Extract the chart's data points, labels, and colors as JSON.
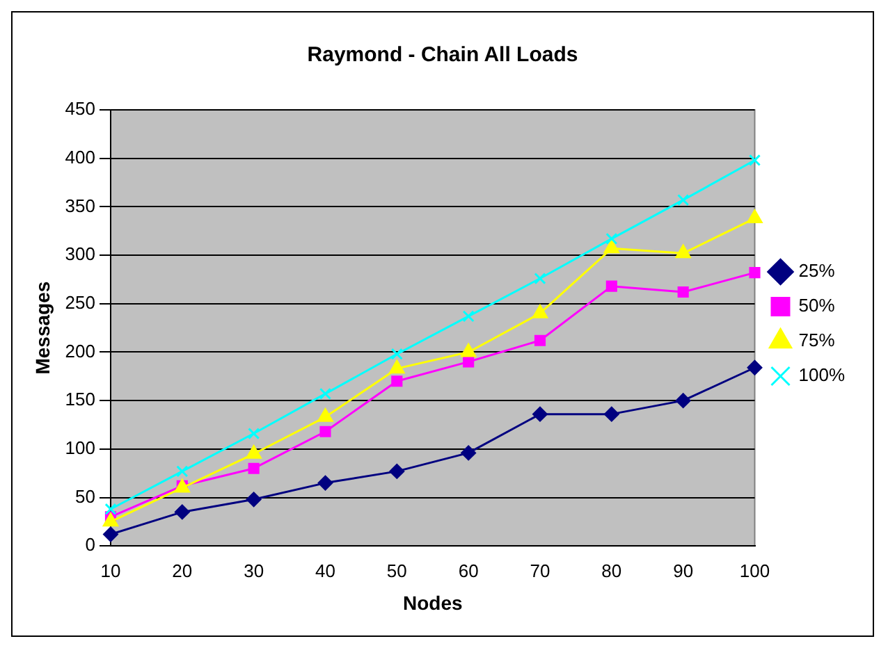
{
  "chart_data": {
    "type": "line",
    "title": "Raymond - Chain All Loads",
    "xlabel": "Nodes",
    "ylabel": "Messages",
    "categories": [
      "10",
      "20",
      "30",
      "40",
      "50",
      "60",
      "70",
      "80",
      "90",
      "100"
    ],
    "series": [
      {
        "name": "25%",
        "color": "#000080",
        "marker": "diamond",
        "values": [
          12,
          35,
          48,
          65,
          77,
          96,
          136,
          136,
          150,
          184
        ]
      },
      {
        "name": "50%",
        "color": "#ff00ff",
        "marker": "square",
        "values": [
          30,
          62,
          80,
          118,
          170,
          190,
          212,
          268,
          262,
          282
        ]
      },
      {
        "name": "75%",
        "color": "#ffff00",
        "marker": "triangle",
        "values": [
          25,
          60,
          95,
          133,
          183,
          200,
          240,
          307,
          302,
          338
        ]
      },
      {
        "name": "100%",
        "color": "#00ffff",
        "marker": "cross",
        "values": [
          38,
          77,
          116,
          157,
          198,
          237,
          276,
          317,
          357,
          398
        ]
      }
    ],
    "ylim": [
      0,
      450
    ],
    "yticks": [
      0,
      50,
      100,
      150,
      200,
      250,
      300,
      350,
      400,
      450
    ],
    "grid": "y",
    "legend": "right"
  }
}
